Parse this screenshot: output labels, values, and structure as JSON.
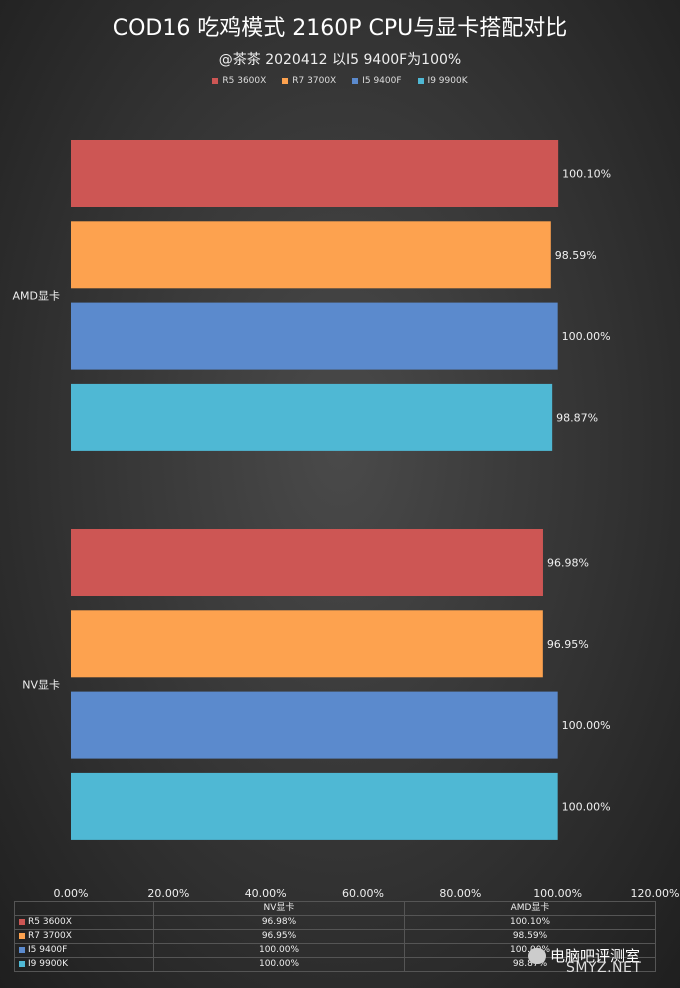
{
  "colors": {
    "r5": "#cd5654",
    "r7": "#fda24f",
    "i5": "#5b8acd",
    "i9": "#4fb8d4"
  },
  "chart_data": {
    "type": "bar",
    "orientation": "horizontal",
    "title": "COD16 吃鸡模式 2160P CPU与显卡搭配对比",
    "subtitle": "@茶茶 2020412   以I5 9400F为100%",
    "categories": [
      "AMD显卡",
      "NV显卡"
    ],
    "series": [
      {
        "name": "R5 3600X",
        "color": "#cd5654",
        "values": [
          100.1,
          96.98
        ],
        "labels": [
          "100.10%",
          "96.98%"
        ]
      },
      {
        "name": "R7 3700X",
        "color": "#fda24f",
        "values": [
          98.59,
          96.95
        ],
        "labels": [
          "98.59%",
          "96.95%"
        ]
      },
      {
        "name": "I5 9400F",
        "color": "#5b8acd",
        "values": [
          100.0,
          100.0
        ],
        "labels": [
          "100.00%",
          "100.00%"
        ]
      },
      {
        "name": "I9 9900K",
        "color": "#4fb8d4",
        "values": [
          98.87,
          100.0
        ],
        "labels": [
          "98.87%",
          "100.00%"
        ]
      }
    ],
    "xlim": [
      0,
      120
    ],
    "xticks": [
      "0.00%",
      "20.00%",
      "40.00%",
      "60.00%",
      "80.00%",
      "100.00%",
      "120.00%"
    ],
    "legend": "top",
    "grid": false
  },
  "table": {
    "headers": [
      "",
      "NV显卡",
      "AMD显卡"
    ],
    "rows": [
      {
        "name": "R5 3600X",
        "nv": "96.98%",
        "amd": "100.10%"
      },
      {
        "name": "R7 3700X",
        "nv": "96.95%",
        "amd": "98.59%"
      },
      {
        "name": "I5 9400F",
        "nv": "100.00%",
        "amd": "100.00%"
      },
      {
        "name": "I9 9900K",
        "nv": "100.00%",
        "amd": "98.87%"
      }
    ]
  },
  "watermark": {
    "brand": "电脑吧评测室",
    "url": "SMYZ.NET"
  }
}
